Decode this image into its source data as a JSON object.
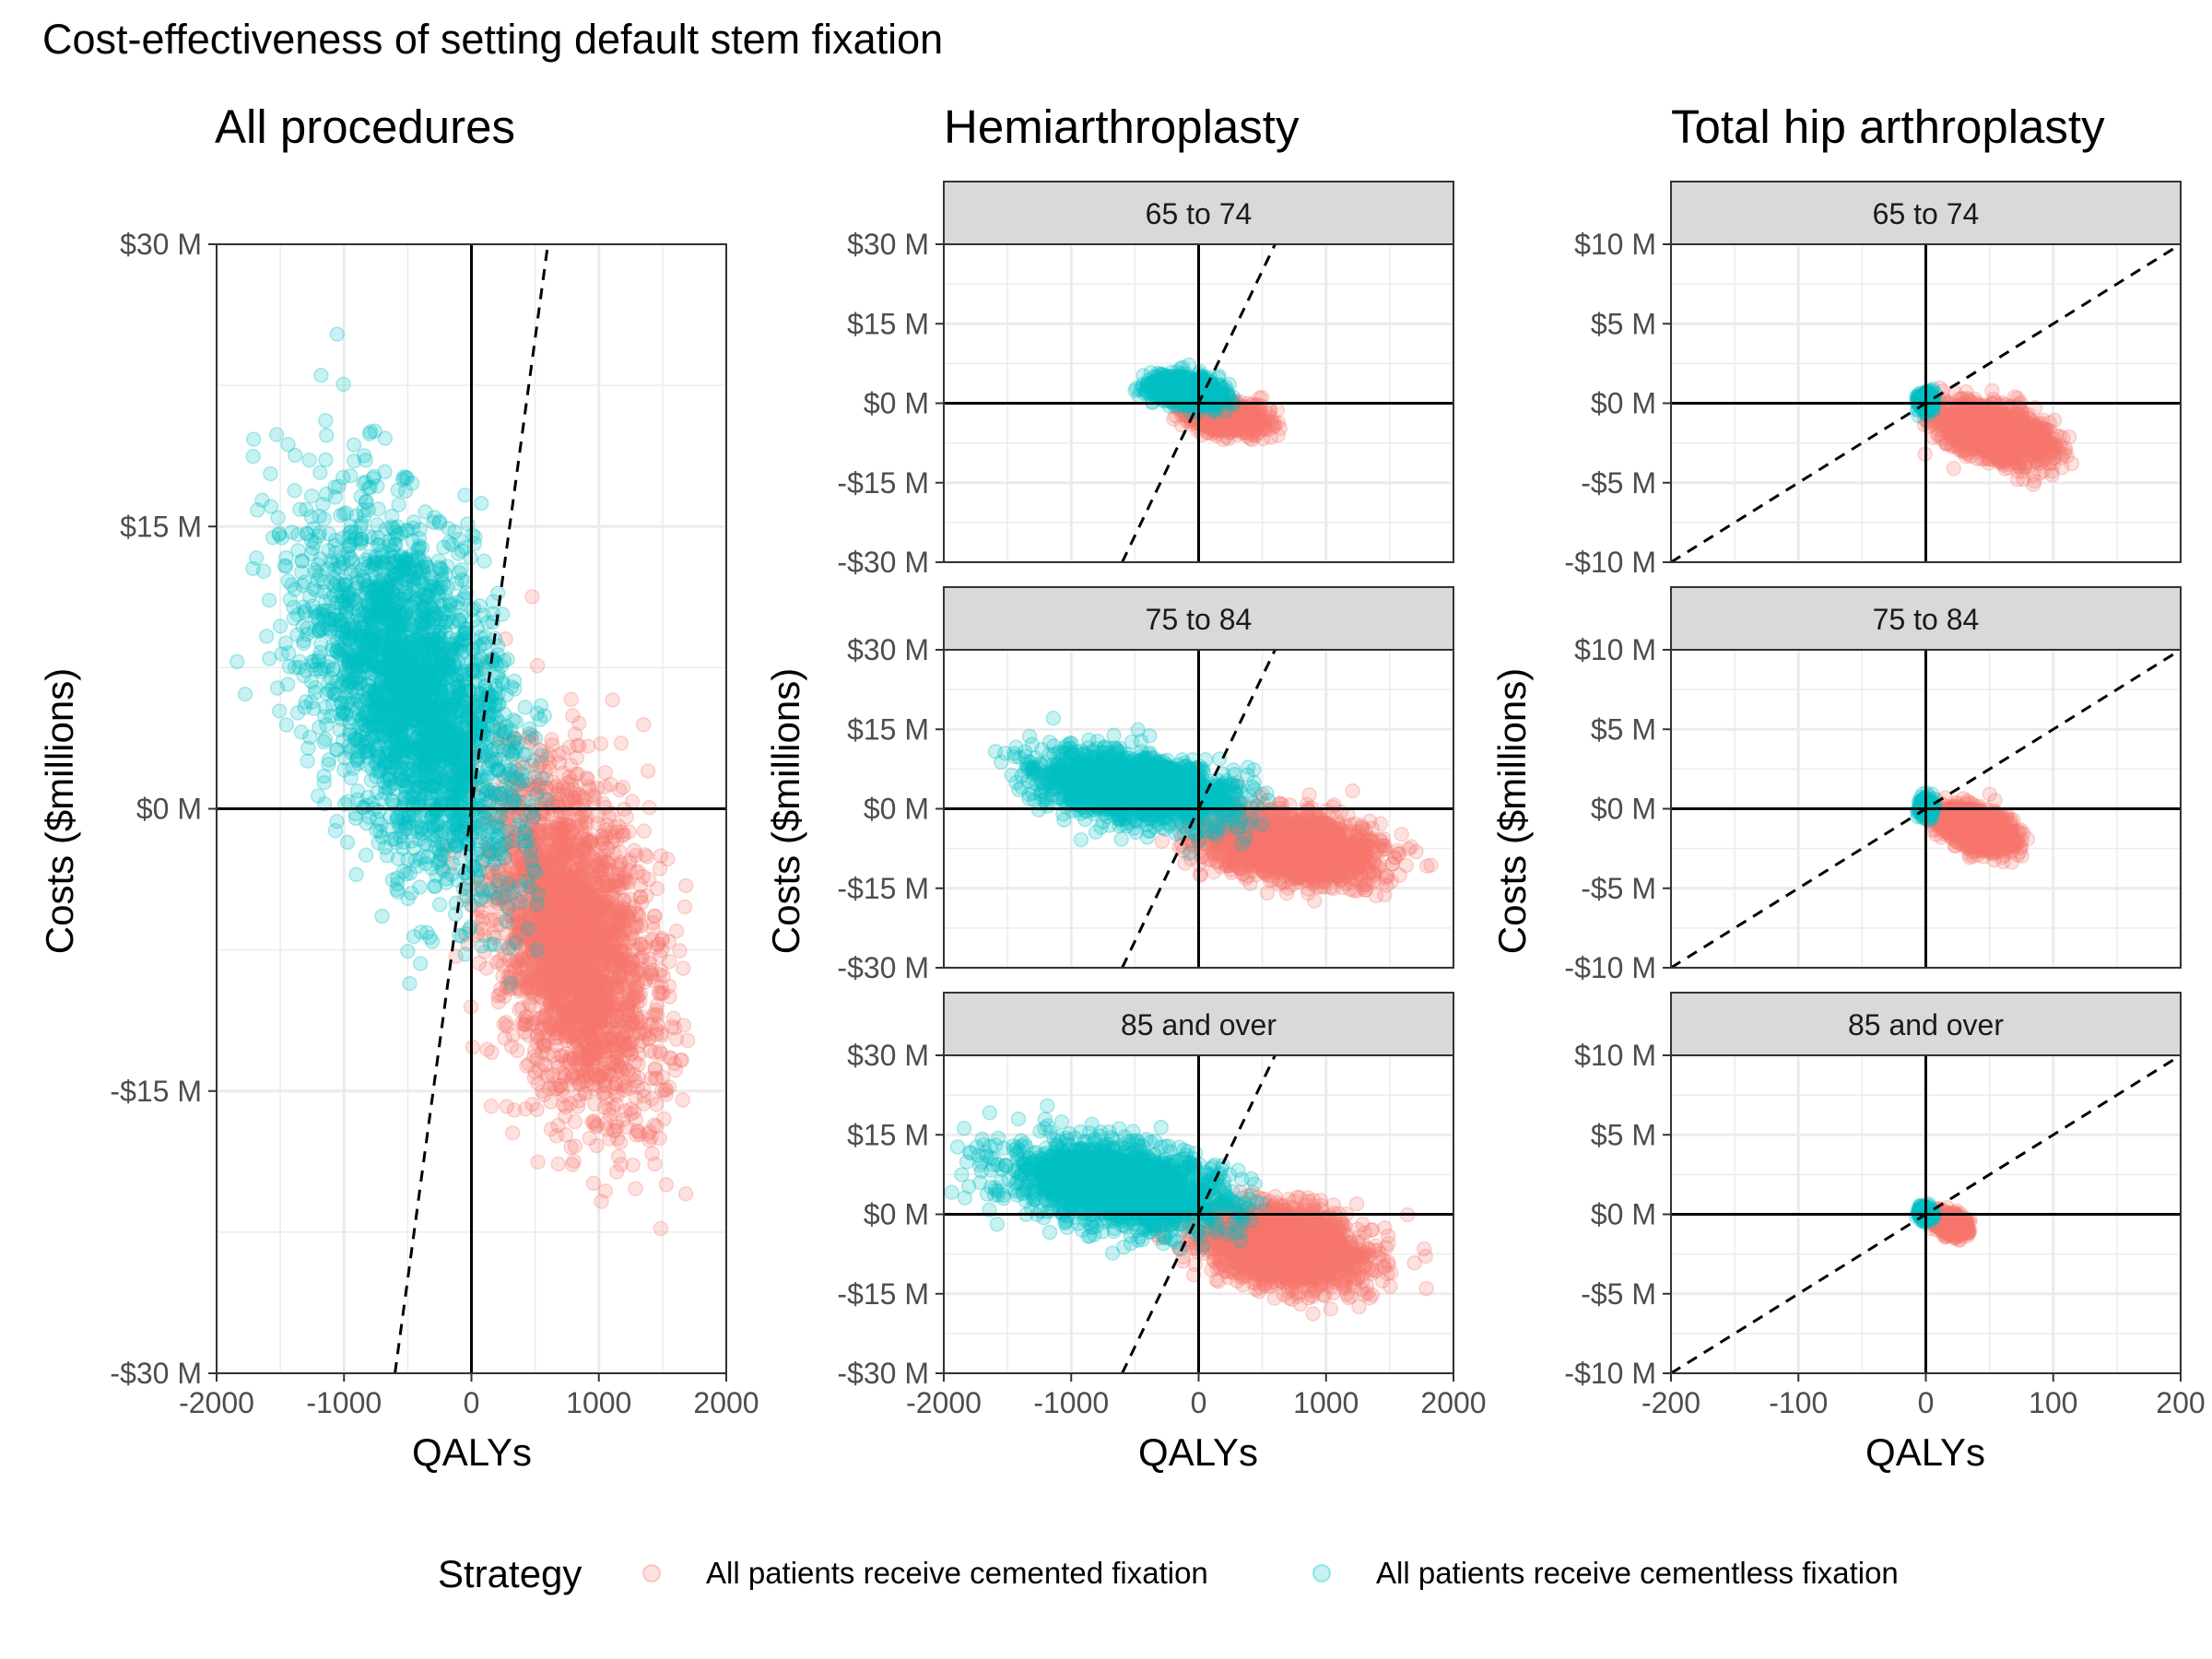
{
  "title": "Cost-effectiveness of setting default stem fixation",
  "column_titles": [
    "All procedures",
    "Hemiarthroplasty",
    "Total hip arthroplasty"
  ],
  "legend": {
    "title": "Strategy",
    "items": [
      {
        "label": "All patients receive cemented fixation",
        "color": "#F8766D"
      },
      {
        "label": "All patients receive cementless fixation",
        "color": "#00BFC4"
      }
    ]
  },
  "colors": {
    "cemented": "#F8766D",
    "cementless": "#00BFC4",
    "strip_fill": "#D9D9D9",
    "grid": "#EBEBEB"
  },
  "chart_data": [
    {
      "type": "scatter",
      "panel": "All procedures",
      "title": "All procedures",
      "xlabel": "QALYs",
      "ylabel": "Costs ($millions)",
      "xlim": [
        -2000,
        2000
      ],
      "ylim": [
        -30,
        30
      ],
      "x_ticks": [
        -2000,
        -1000,
        0,
        1000,
        2000
      ],
      "x_tick_labels": [
        "-2000",
        "-1000",
        "0",
        "1000",
        "2000"
      ],
      "y_ticks": [
        -30,
        -15,
        0,
        15,
        30
      ],
      "y_tick_labels": [
        "-$30 M",
        "-$15 M",
        "$0 M",
        "$15 M",
        "$30 M"
      ],
      "reference_line": {
        "slope_per_qaly_millions": 0.05,
        "style": "dashed"
      },
      "series": [
        {
          "name": "All patients receive cemented fixation",
          "color": "#F8766D",
          "cloud": {
            "center": [
              800,
              -7
            ],
            "spread": [
              320,
              4.5
            ],
            "rho": -0.35,
            "n": 2600,
            "x_range": [
              -600,
              2000
            ],
            "y_range": [
              -26,
              12
            ]
          }
        },
        {
          "name": "All patients receive cementless fixation",
          "color": "#00BFC4",
          "cloud": {
            "center": [
              -450,
              6
            ],
            "spread": [
              420,
              5
            ],
            "rho": -0.45,
            "n": 2600,
            "x_range": [
              -2000,
              600
            ],
            "y_range": [
              -17,
              28
            ]
          }
        }
      ]
    },
    {
      "type": "scatter",
      "panel": "Hemiarthroplasty",
      "strip": "65 to 74",
      "xlim": [
        -2000,
        2000
      ],
      "ylim": [
        -30,
        30
      ],
      "x_ticks": [
        -2000,
        -1000,
        0,
        1000,
        2000
      ],
      "x_tick_labels": [
        "-2000",
        "-1000",
        "0",
        "1000",
        "2000"
      ],
      "y_ticks": [
        -30,
        -15,
        0,
        15,
        30
      ],
      "y_tick_labels": [
        "-$30 M",
        "-$15 M",
        "$0 M",
        "$15 M",
        "$30 M"
      ],
      "reference_line": {
        "slope_per_qaly_millions": 0.05,
        "style": "dashed"
      },
      "series": [
        {
          "name": "All patients receive cemented fixation",
          "color": "#F8766D",
          "cloud": {
            "center": [
              200,
              -2.5
            ],
            "spread": [
              170,
              1.6
            ],
            "rho": -0.3,
            "n": 800,
            "x_range": [
              -200,
              650
            ],
            "y_range": [
              -8,
              4
            ]
          }
        },
        {
          "name": "All patients receive cementless fixation",
          "color": "#00BFC4",
          "cloud": {
            "center": [
              -100,
              2.5
            ],
            "spread": [
              140,
              1.5
            ],
            "rho": -0.3,
            "n": 800,
            "x_range": [
              -500,
              300
            ],
            "y_range": [
              -3,
              8
            ]
          }
        }
      ]
    },
    {
      "type": "scatter",
      "panel": "Hemiarthroplasty",
      "strip": "75 to 84",
      "xlim": [
        -2000,
        2000
      ],
      "ylim": [
        -30,
        30
      ],
      "x_ticks": [
        -2000,
        -1000,
        0,
        1000,
        2000
      ],
      "x_tick_labels": [
        "-2000",
        "-1000",
        "0",
        "1000",
        "2000"
      ],
      "y_ticks": [
        -30,
        -15,
        0,
        15,
        30
      ],
      "y_tick_labels": [
        "-$30 M",
        "-$15 M",
        "$0 M",
        "$15 M",
        "$30 M"
      ],
      "reference_line": {
        "slope_per_qaly_millions": 0.05,
        "style": "dashed"
      },
      "series": [
        {
          "name": "All patients receive cemented fixation",
          "color": "#F8766D",
          "cloud": {
            "center": [
              700,
              -7
            ],
            "spread": [
              330,
              3.2
            ],
            "rho": -0.3,
            "n": 1800,
            "x_range": [
              -500,
              1950
            ],
            "y_range": [
              -25,
              5
            ]
          }
        },
        {
          "name": "All patients receive cementless fixation",
          "color": "#00BFC4",
          "cloud": {
            "center": [
              -500,
              4
            ],
            "spread": [
              380,
              3.3
            ],
            "rho": -0.35,
            "n": 1800,
            "x_range": [
              -1600,
              600
            ],
            "y_range": [
              -10,
              20
            ]
          }
        }
      ]
    },
    {
      "type": "scatter",
      "panel": "Hemiarthroplasty",
      "strip": "85 and over",
      "xlim": [
        -2000,
        2000
      ],
      "ylim": [
        -30,
        30
      ],
      "x_ticks": [
        -2000,
        -1000,
        0,
        1000,
        2000
      ],
      "x_tick_labels": [
        "-2000",
        "-1000",
        "0",
        "1000",
        "2000"
      ],
      "y_ticks": [
        -30,
        -15,
        0,
        15,
        30
      ],
      "y_tick_labels": [
        "-$30 M",
        "-$15 M",
        "$0 M",
        "$15 M",
        "$30 M"
      ],
      "reference_line": {
        "slope_per_qaly_millions": 0.05,
        "style": "dashed"
      },
      "series": [
        {
          "name": "All patients receive cemented fixation",
          "color": "#F8766D",
          "cloud": {
            "center": [
              650,
              -6
            ],
            "spread": [
              330,
              3.8
            ],
            "rho": -0.3,
            "n": 1800,
            "x_range": [
              -600,
              1950
            ],
            "y_range": [
              -27,
              6
            ]
          }
        },
        {
          "name": "All patients receive cementless fixation",
          "color": "#00BFC4",
          "cloud": {
            "center": [
              -600,
              5.5
            ],
            "spread": [
              430,
              4.0
            ],
            "rho": -0.35,
            "n": 1800,
            "x_range": [
              -1950,
              500
            ],
            "y_range": [
              -12,
              23
            ]
          }
        }
      ]
    },
    {
      "type": "scatter",
      "panel": "Total hip arthroplasty",
      "strip": "65 to 74",
      "xlim": [
        -200,
        200
      ],
      "ylim": [
        -10,
        10
      ],
      "x_ticks": [
        -200,
        -100,
        0,
        100,
        200
      ],
      "x_tick_labels": [
        "-200",
        "-100",
        "0",
        "100",
        "200"
      ],
      "y_ticks": [
        -10,
        -5,
        0,
        5,
        10
      ],
      "y_tick_labels": [
        "-$10 M",
        "-$5 M",
        "$0 M",
        "$5 M",
        "$10 M"
      ],
      "reference_line": {
        "slope_per_qaly_millions": 0.05,
        "style": "dashed"
      },
      "series": [
        {
          "name": "All patients receive cemented fixation",
          "color": "#F8766D",
          "cloud": {
            "center": [
              55,
              -1.9
            ],
            "spread": [
              22,
              0.9
            ],
            "rho": -0.4,
            "n": 1400,
            "x_range": [
              -3,
              115
            ],
            "y_range": [
              -5.5,
              1.2
            ]
          }
        },
        {
          "name": "All patients receive cementless fixation",
          "color": "#00BFC4",
          "cloud": {
            "center": [
              0,
              0.1
            ],
            "spread": [
              3,
              0.3
            ],
            "rho": 0,
            "n": 220,
            "x_range": [
              -8,
              8
            ],
            "y_range": [
              -0.8,
              1
            ]
          }
        }
      ]
    },
    {
      "type": "scatter",
      "panel": "Total hip arthroplasty",
      "strip": "75 to 84",
      "xlim": [
        -200,
        200
      ],
      "ylim": [
        -10,
        10
      ],
      "x_ticks": [
        -200,
        -100,
        0,
        100,
        200
      ],
      "x_tick_labels": [
        "-200",
        "-100",
        "0",
        "100",
        "200"
      ],
      "y_ticks": [
        -10,
        -5,
        0,
        5,
        10
      ],
      "y_tick_labels": [
        "-$10 M",
        "-$5 M",
        "$0 M",
        "$5 M",
        "$10 M"
      ],
      "reference_line": {
        "slope_per_qaly_millions": 0.05,
        "style": "dashed"
      },
      "series": [
        {
          "name": "All patients receive cemented fixation",
          "color": "#F8766D",
          "cloud": {
            "center": [
              40,
              -1.3
            ],
            "spread": [
              14,
              0.7
            ],
            "rho": -0.4,
            "n": 1100,
            "x_range": [
              -3,
              80
            ],
            "y_range": [
              -4.2,
              1
            ]
          }
        },
        {
          "name": "All patients receive cementless fixation",
          "color": "#00BFC4",
          "cloud": {
            "center": [
              0,
              0.1
            ],
            "spread": [
              3,
              0.3
            ],
            "rho": 0,
            "n": 220,
            "x_range": [
              -8,
              8
            ],
            "y_range": [
              -0.8,
              1
            ]
          }
        }
      ]
    },
    {
      "type": "scatter",
      "panel": "Total hip arthroplasty",
      "strip": "85 and over",
      "xlim": [
        -200,
        200
      ],
      "ylim": [
        -10,
        10
      ],
      "x_ticks": [
        -200,
        -100,
        0,
        100,
        200
      ],
      "x_tick_labels": [
        "-200",
        "-100",
        "0",
        "100",
        "200"
      ],
      "y_ticks": [
        -10,
        -5,
        0,
        5,
        10
      ],
      "y_tick_labels": [
        "-$10 M",
        "-$5 M",
        "$0 M",
        "$5 M",
        "$10 M"
      ],
      "reference_line": {
        "slope_per_qaly_millions": 0.05,
        "style": "dashed"
      },
      "series": [
        {
          "name": "All patients receive cemented fixation",
          "color": "#F8766D",
          "cloud": {
            "center": [
              20,
              -0.6
            ],
            "spread": [
              7,
              0.35
            ],
            "rho": -0.3,
            "n": 600,
            "x_range": [
              -2,
              35
            ],
            "y_range": [
              -1.8,
              0.6
            ]
          }
        },
        {
          "name": "All patients receive cementless fixation",
          "color": "#00BFC4",
          "cloud": {
            "center": [
              0,
              0.05
            ],
            "spread": [
              3,
              0.25
            ],
            "rho": 0,
            "n": 180,
            "x_range": [
              -8,
              8
            ],
            "y_range": [
              -0.6,
              0.7
            ]
          }
        }
      ]
    }
  ]
}
